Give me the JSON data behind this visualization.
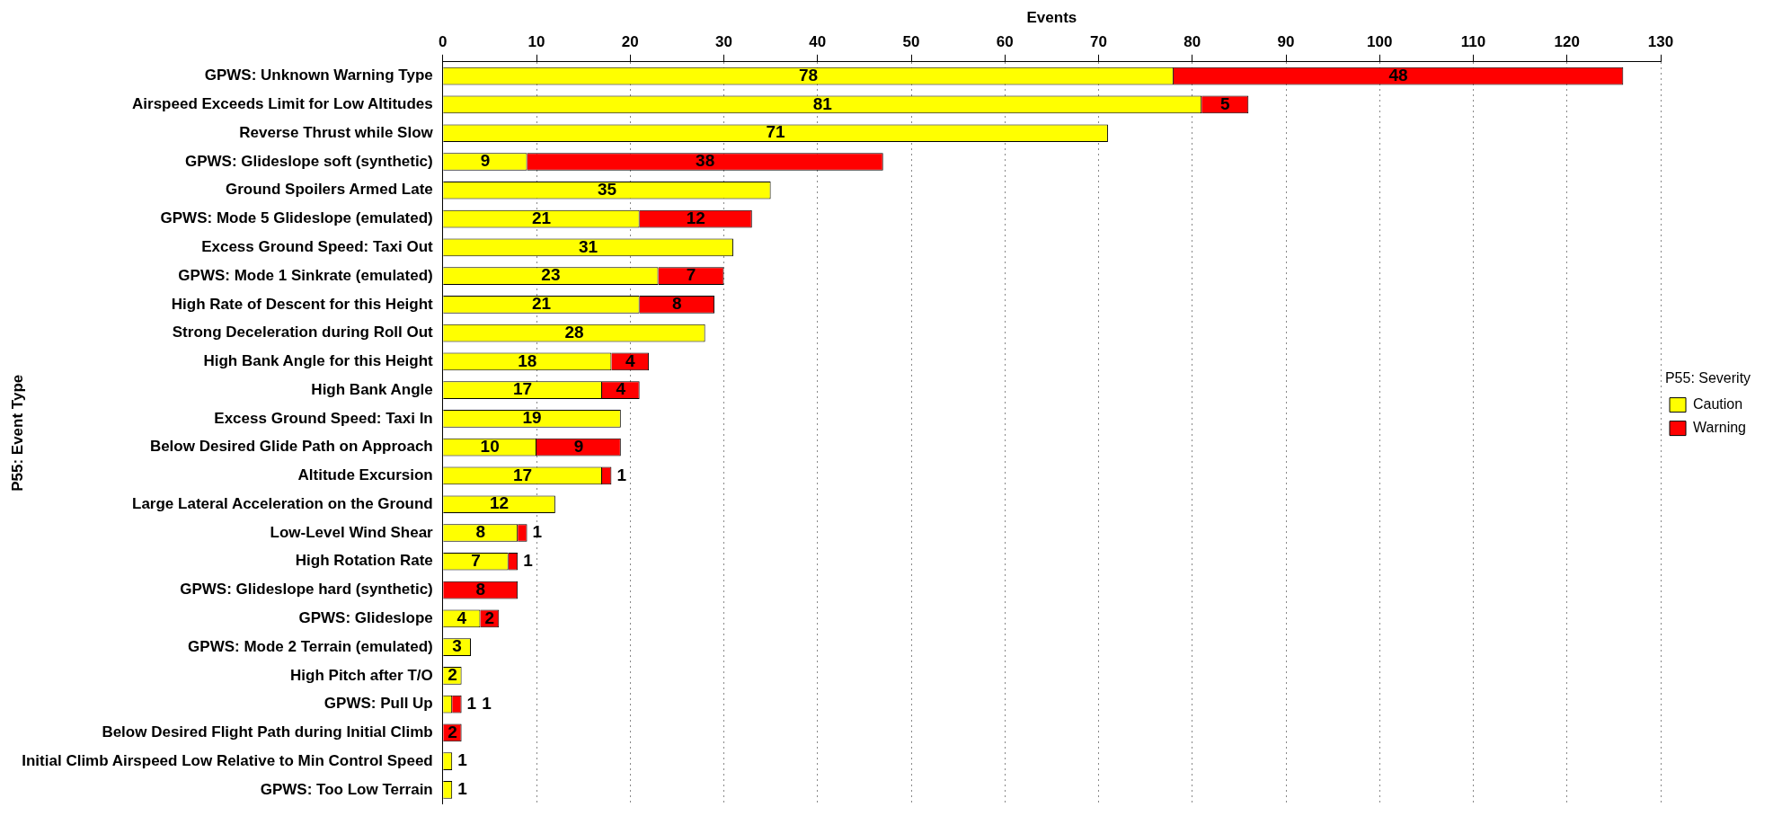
{
  "chart_data": {
    "type": "bar",
    "orientation": "horizontal",
    "stacked": true,
    "xlabel": "Events",
    "ylabel": "P55: Event Type",
    "legend_title": "P55: Severity",
    "legend": "right",
    "grid": "x",
    "data_labels": true,
    "categories": [
      "GPWS: Unknown Warning Type",
      "Airspeed Exceeds Limit for Low Altitudes",
      "Reverse Thrust while Slow",
      "GPWS: Glideslope soft (synthetic)",
      "Ground Spoilers Armed Late",
      "GPWS: Mode 5 Glideslope (emulated)",
      "Excess Ground Speed: Taxi Out",
      "GPWS: Mode 1 Sinkrate (emulated)",
      "High Rate of Descent for this Height",
      "Strong Deceleration during Roll Out",
      "High Bank Angle for this Height",
      "High Bank Angle",
      "Excess Ground Speed: Taxi In",
      "Below Desired Glide Path on Approach",
      "Altitude Excursion",
      "Large Lateral Acceleration on the Ground",
      "Low-Level Wind Shear",
      "High Rotation Rate",
      "GPWS: Glideslope hard (synthetic)",
      "GPWS: Glideslope",
      "GPWS: Mode 2 Terrain (emulated)",
      "High Pitch after T/O",
      "GPWS: Pull Up",
      "Below Desired Flight Path during Initial Climb",
      "Initial Climb Airspeed Low Relative to Min Control Speed",
      "GPWS: Too Low Terrain"
    ],
    "xlim": [
      0,
      130
    ],
    "xticks": [
      0,
      10,
      20,
      30,
      40,
      50,
      60,
      70,
      80,
      90,
      100,
      110,
      120,
      130
    ],
    "series": [
      {
        "name": "Caution",
        "color": "#ffff00",
        "values": [
          78,
          81,
          71,
          9,
          35,
          21,
          31,
          23,
          21,
          28,
          18,
          17,
          19,
          10,
          17,
          12,
          8,
          7,
          null,
          4,
          3,
          2,
          1,
          null,
          1,
          1
        ]
      },
      {
        "name": "Warning",
        "color": "#ff0000",
        "values": [
          48,
          5,
          null,
          38,
          null,
          12,
          null,
          7,
          8,
          null,
          4,
          4,
          null,
          9,
          1,
          null,
          1,
          1,
          8,
          2,
          null,
          null,
          1,
          2,
          null,
          null
        ]
      }
    ]
  }
}
